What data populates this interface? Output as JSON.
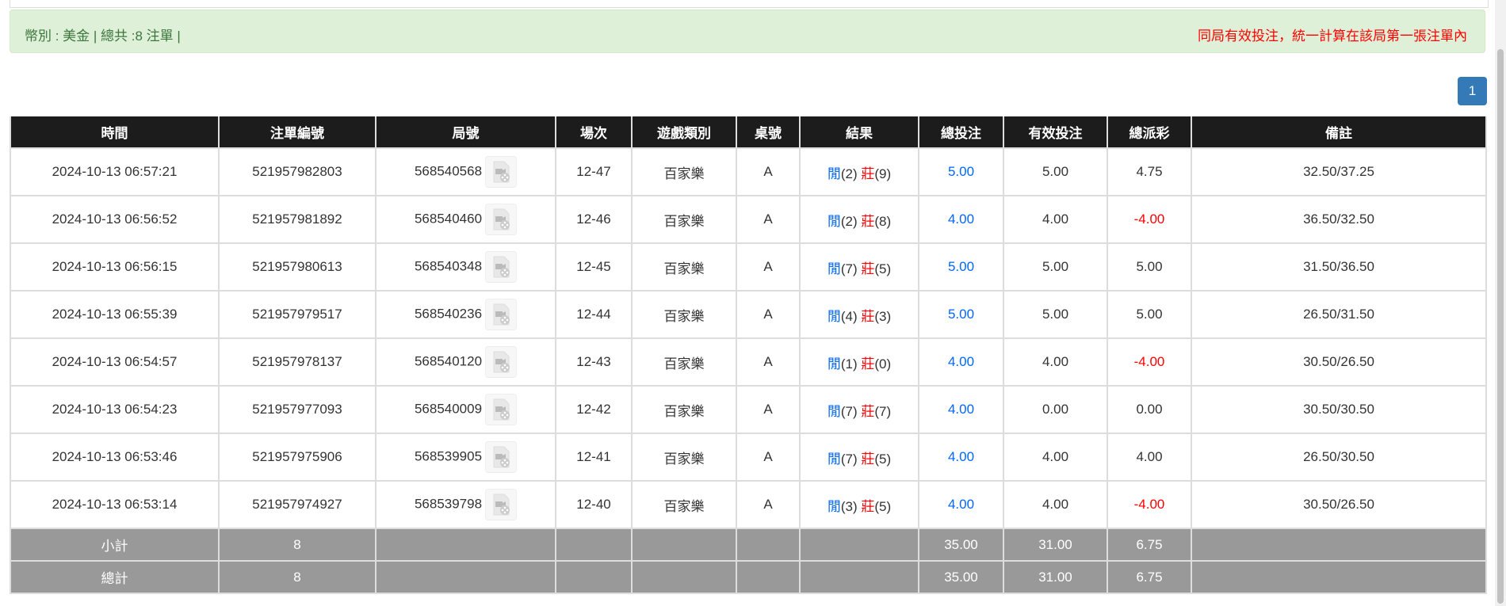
{
  "summary_bar": {
    "left": "幣別 : 美金 | 總共 :8 注單 |",
    "right": "同局有效投注，統一計算在該局第一張注單內"
  },
  "pagination": {
    "current": "1"
  },
  "colors": {
    "blue": "#0066ff",
    "red": "#ff0000",
    "header_bg": "#1c1c1c",
    "summary_bg": "#999999",
    "alert_bg": "#dff0d8",
    "pager": "#337ab7"
  },
  "table": {
    "headers": [
      "時間",
      "注單編號",
      "局號",
      "場次",
      "遊戲類別",
      "桌號",
      "結果",
      "總投注",
      "有效投注",
      "總派彩",
      "備註"
    ],
    "rows": [
      {
        "time": "2024-10-13 06:57:21",
        "bet_id": "521957982803",
        "round": "568540568",
        "shoe": "12-47",
        "game": "百家樂",
        "table": "A",
        "player": "閒",
        "player_pts": "(2)",
        "banker": "莊",
        "banker_pts": "(9)",
        "total_bet": "5.00",
        "valid_bet": "5.00",
        "payout": "4.75",
        "payout_negative": false,
        "note": "32.50/37.25"
      },
      {
        "time": "2024-10-13 06:56:52",
        "bet_id": "521957981892",
        "round": "568540460",
        "shoe": "12-46",
        "game": "百家樂",
        "table": "A",
        "player": "閒",
        "player_pts": "(2)",
        "banker": "莊",
        "banker_pts": "(8)",
        "total_bet": "4.00",
        "valid_bet": "4.00",
        "payout": "-4.00",
        "payout_negative": true,
        "note": "36.50/32.50"
      },
      {
        "time": "2024-10-13 06:56:15",
        "bet_id": "521957980613",
        "round": "568540348",
        "shoe": "12-45",
        "game": "百家樂",
        "table": "A",
        "player": "閒",
        "player_pts": "(7)",
        "banker": "莊",
        "banker_pts": "(5)",
        "total_bet": "5.00",
        "valid_bet": "5.00",
        "payout": "5.00",
        "payout_negative": false,
        "note": "31.50/36.50"
      },
      {
        "time": "2024-10-13 06:55:39",
        "bet_id": "521957979517",
        "round": "568540236",
        "shoe": "12-44",
        "game": "百家樂",
        "table": "A",
        "player": "閒",
        "player_pts": "(4)",
        "banker": "莊",
        "banker_pts": "(3)",
        "total_bet": "5.00",
        "valid_bet": "5.00",
        "payout": "5.00",
        "payout_negative": false,
        "note": "26.50/31.50"
      },
      {
        "time": "2024-10-13 06:54:57",
        "bet_id": "521957978137",
        "round": "568540120",
        "shoe": "12-43",
        "game": "百家樂",
        "table": "A",
        "player": "閒",
        "player_pts": "(1)",
        "banker": "莊",
        "banker_pts": "(0)",
        "total_bet": "4.00",
        "valid_bet": "4.00",
        "payout": "-4.00",
        "payout_negative": true,
        "note": "30.50/26.50"
      },
      {
        "time": "2024-10-13 06:54:23",
        "bet_id": "521957977093",
        "round": "568540009",
        "shoe": "12-42",
        "game": "百家樂",
        "table": "A",
        "player": "閒",
        "player_pts": "(7)",
        "banker": "莊",
        "banker_pts": "(7)",
        "total_bet": "4.00",
        "valid_bet": "0.00",
        "payout": "0.00",
        "payout_negative": false,
        "note": "30.50/30.50"
      },
      {
        "time": "2024-10-13 06:53:46",
        "bet_id": "521957975906",
        "round": "568539905",
        "shoe": "12-41",
        "game": "百家樂",
        "table": "A",
        "player": "閒",
        "player_pts": "(7)",
        "banker": "莊",
        "banker_pts": "(5)",
        "total_bet": "4.00",
        "valid_bet": "4.00",
        "payout": "4.00",
        "payout_negative": false,
        "note": "26.50/30.50"
      },
      {
        "time": "2024-10-13 06:53:14",
        "bet_id": "521957974927",
        "round": "568539798",
        "shoe": "12-40",
        "game": "百家樂",
        "table": "A",
        "player": "閒",
        "player_pts": "(3)",
        "banker": "莊",
        "banker_pts": "(5)",
        "total_bet": "4.00",
        "valid_bet": "4.00",
        "payout": "-4.00",
        "payout_negative": true,
        "note": "30.50/26.50"
      }
    ],
    "subtotal": {
      "label": "小計",
      "count": "8",
      "total_bet": "35.00",
      "valid_bet": "31.00",
      "payout": "6.75"
    },
    "grand_total": {
      "label": "總計",
      "count": "8",
      "total_bet": "35.00",
      "valid_bet": "31.00",
      "payout": "6.75"
    }
  }
}
